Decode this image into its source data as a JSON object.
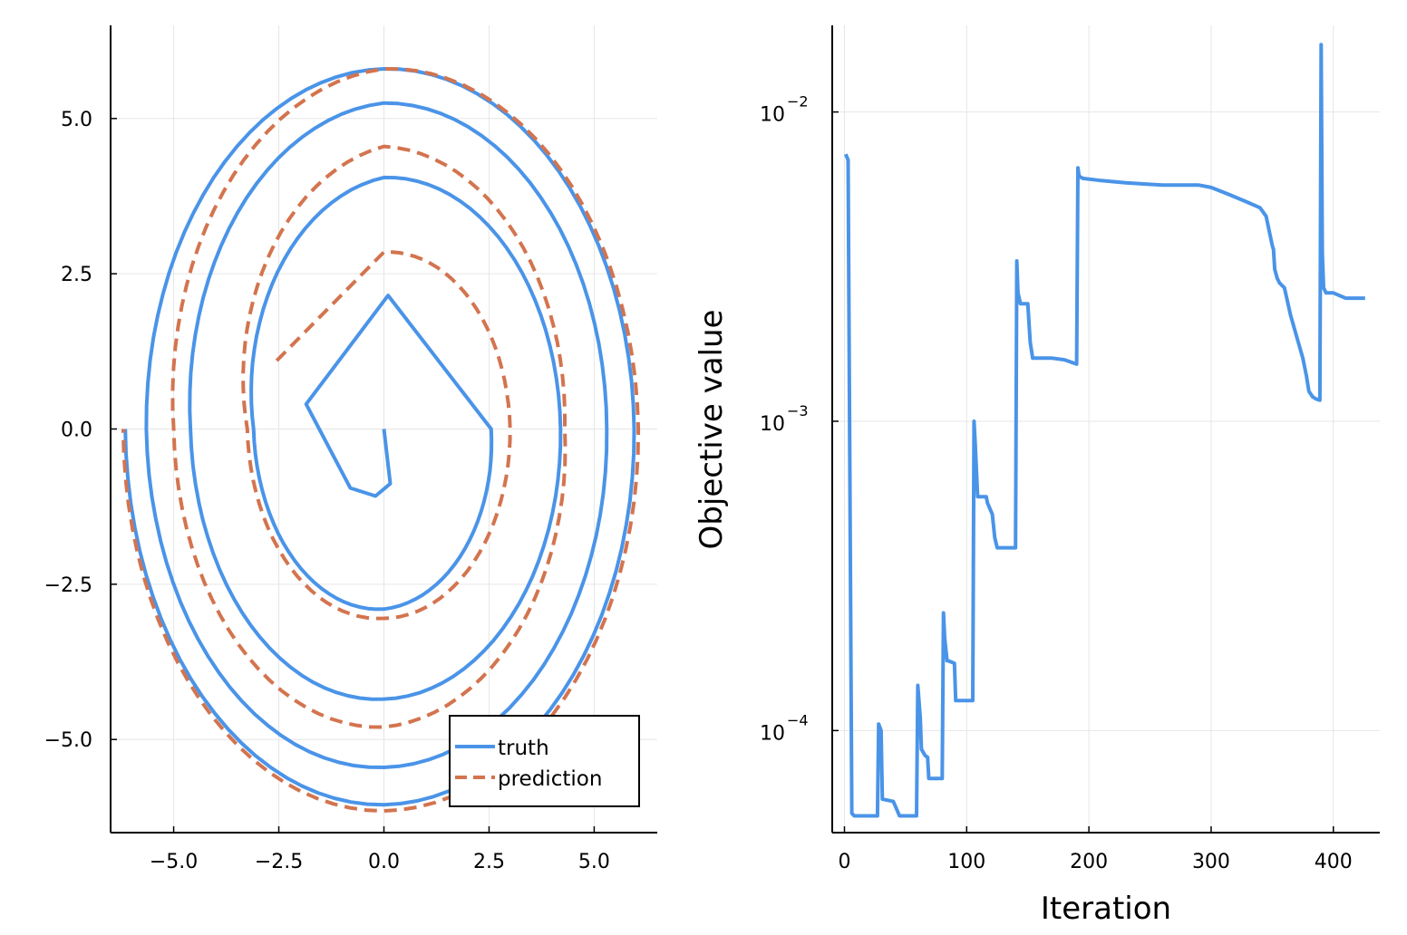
{
  "chart_data": [
    {
      "type": "line",
      "title": "",
      "xlabel": "",
      "ylabel": "",
      "xlim": [
        -6.5,
        6.5
      ],
      "ylim": [
        -6.5,
        6.5
      ],
      "xticks": [
        "−5.0",
        "−2.5",
        "0.0",
        "2.5",
        "5.0"
      ],
      "yticks": [
        "−5.0",
        "−2.5",
        "0.0",
        "2.5",
        "5.0"
      ],
      "grid": true,
      "legend_position": "bottom-right",
      "series": [
        {
          "name": "truth",
          "color": "#4a94e8",
          "style": "solid",
          "description_points": [
            [
              0.0,
              0.0
            ],
            [
              0.15,
              -0.88
            ],
            [
              -0.2,
              -1.08
            ],
            [
              -0.8,
              -0.95
            ],
            [
              -1.85,
              0.4
            ],
            [
              0.1,
              2.15
            ],
            [
              2.55,
              0.0
            ],
            [
              0.0,
              -2.9
            ],
            [
              -3.1,
              0.0
            ],
            [
              0.0,
              4.05
            ],
            [
              4.2,
              0.0
            ],
            [
              0.0,
              -4.35
            ],
            [
              -4.6,
              0.0
            ],
            [
              0.0,
              5.25
            ],
            [
              5.3,
              0.0
            ],
            [
              0.0,
              -5.45
            ],
            [
              -5.65,
              0.0
            ],
            [
              0.0,
              5.8
            ],
            [
              5.95,
              0.0
            ],
            [
              0.0,
              -6.05
            ],
            [
              -6.15,
              0.0
            ]
          ]
        },
        {
          "name": "prediction",
          "color": "#d3744f",
          "style": "dashed",
          "description_points": [
            [
              -2.55,
              1.1
            ],
            [
              0.0,
              2.85
            ],
            [
              3.0,
              0.0
            ],
            [
              0.0,
              -3.05
            ],
            [
              -3.25,
              0.0
            ],
            [
              0.0,
              4.55
            ],
            [
              4.3,
              0.0
            ],
            [
              0.0,
              -4.8
            ],
            [
              -5.0,
              0.0
            ],
            [
              0.0,
              5.8
            ],
            [
              6.05,
              0.0
            ],
            [
              0.0,
              -6.15
            ],
            [
              -6.2,
              0.0
            ]
          ]
        }
      ]
    },
    {
      "type": "line",
      "title": "",
      "xlabel": "Iteration",
      "ylabel": "Objective value",
      "xlim": [
        -10,
        438
      ],
      "ylim_log10": [
        -4.33,
        -1.72
      ],
      "yscale": "log",
      "xticks": [
        "0",
        "100",
        "200",
        "300",
        "400"
      ],
      "yticks": [
        "10",
        "10",
        "10"
      ],
      "ytick_exponents": [
        "−4",
        "−3",
        "−2"
      ],
      "grid": true,
      "series": [
        {
          "name": "",
          "color": "#4a94e8",
          "style": "solid",
          "x": [
            1,
            3,
            4,
            6,
            8,
            27,
            28,
            30,
            31,
            40,
            45,
            59,
            60,
            62,
            63,
            66,
            68,
            69,
            80,
            81,
            82,
            84,
            85,
            90,
            91,
            100,
            105,
            106,
            107,
            109,
            110,
            116,
            117,
            121,
            123,
            125,
            140,
            141,
            142,
            144,
            150,
            152,
            154,
            160,
            170,
            180,
            190,
            191,
            192,
            195,
            210,
            230,
            260,
            290,
            300,
            315,
            330,
            340,
            345,
            350,
            351,
            352,
            354,
            356,
            360,
            365,
            375,
            378,
            380,
            383,
            386,
            389,
            390,
            391,
            392,
            394,
            400,
            410,
            426
          ],
          "y": [
            0.0073,
            0.007,
            0.0013,
            5.4e-05,
            5.3e-05,
            5.3e-05,
            0.000105,
            0.0001,
            6e-05,
            5.9e-05,
            5.3e-05,
            5.3e-05,
            0.00014,
            0.00011,
            8.7e-05,
            8.3e-05,
            8.2e-05,
            7e-05,
            7e-05,
            0.00024,
            0.0002,
            0.000168,
            0.000168,
            0.000165,
            0.000125,
            0.000125,
            0.000125,
            0.001,
            0.00085,
            0.00057,
            0.00057,
            0.00057,
            0.000545,
            0.0005,
            0.00042,
            0.00039,
            0.00039,
            0.0033,
            0.0026,
            0.0024,
            0.0024,
            0.0018,
            0.0016,
            0.0016,
            0.0016,
            0.00158,
            0.00153,
            0.0066,
            0.0062,
            0.0061,
            0.006,
            0.0059,
            0.0058,
            0.0058,
            0.0057,
            0.0054,
            0.0051,
            0.0049,
            0.0046,
            0.0037,
            0.0036,
            0.0031,
            0.0029,
            0.0028,
            0.0027,
            0.0022,
            0.0016,
            0.0014,
            0.00125,
            0.0012,
            0.00118,
            0.00117,
            0.0165,
            0.0035,
            0.0027,
            0.0026,
            0.0026,
            0.0025,
            0.0025
          ]
        }
      ]
    }
  ],
  "legend": {
    "entries": [
      {
        "label": "truth",
        "color": "#4a94e8",
        "style": "solid"
      },
      {
        "label": "prediction",
        "color": "#d3744f",
        "style": "dashed"
      }
    ]
  },
  "left_plot": {
    "xticks": [
      {
        "label": "−5.0",
        "value": -5.0
      },
      {
        "label": "−2.5",
        "value": -2.5
      },
      {
        "label": "0.0",
        "value": 0.0
      },
      {
        "label": "2.5",
        "value": 2.5
      },
      {
        "label": "5.0",
        "value": 5.0
      }
    ],
    "yticks": [
      {
        "label": "5.0",
        "value": 5.0
      },
      {
        "label": "2.5",
        "value": 2.5
      },
      {
        "label": "0.0",
        "value": 0.0
      },
      {
        "label": "−2.5",
        "value": -2.5
      },
      {
        "label": "−5.0",
        "value": -5.0
      }
    ]
  },
  "right_plot": {
    "xlabel": "Iteration",
    "ylabel": "Objective value",
    "xticks": [
      {
        "label": "0",
        "value": 0
      },
      {
        "label": "100",
        "value": 100
      },
      {
        "label": "200",
        "value": 200
      },
      {
        "label": "300",
        "value": 300
      },
      {
        "label": "400",
        "value": 400
      }
    ],
    "yticks": [
      {
        "base": "10",
        "exponent": "−2",
        "value": 0.01
      },
      {
        "base": "10",
        "exponent": "−3",
        "value": 0.001
      },
      {
        "base": "10",
        "exponent": "−4",
        "value": 0.0001
      }
    ]
  }
}
